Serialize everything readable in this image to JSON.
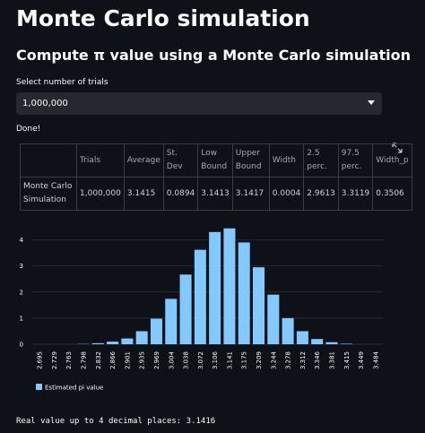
{
  "header": {
    "title": "Monte Carlo simulation",
    "subtitle": "Compute π value using a Monte Carlo simulation"
  },
  "select": {
    "label": "Select number of trials",
    "value": "1,000,000"
  },
  "status": "Done!",
  "table": {
    "columns": [
      "Trials",
      "Average",
      "St. Dev",
      "Low Bound",
      "Upper Bound",
      "Width",
      "2.5 perc.",
      "97.5 perc.",
      "Width_p"
    ],
    "rows": [
      [
        "Monte Carlo Simulation",
        "1,000,000",
        "3.1415",
        "0.0894",
        "3.1413",
        "3.1417",
        "0.0004",
        "2.9613",
        "3.3119",
        "0.3506"
      ]
    ]
  },
  "chart_data": {
    "type": "bar",
    "categories": [
      "2.695",
      "2.729",
      "2.763",
      "2.798",
      "2.832",
      "2.866",
      "2.901",
      "2.935",
      "2.969",
      "3.004",
      "3.038",
      "3.072",
      "3.106",
      "3.141",
      "3.175",
      "3.209",
      "3.244",
      "3.278",
      "3.312",
      "3.346",
      "3.381",
      "3.415",
      "3.449",
      "3.484"
    ],
    "series": [
      {
        "name": "Estimated pi value",
        "color": "#83c9ff",
        "values": [
          0,
          0,
          0,
          0.01,
          0.04,
          0.1,
          0.22,
          0.5,
          0.98,
          1.74,
          2.67,
          3.62,
          4.3,
          4.44,
          3.9,
          2.95,
          1.9,
          1.0,
          0.5,
          0.2,
          0.08,
          0.02,
          0,
          0
        ]
      }
    ],
    "ylim": [
      0,
      4.5
    ],
    "yticks": [
      0,
      1,
      2,
      3,
      4
    ],
    "grid": true,
    "legend": "bottom-left"
  },
  "footer": "Real value up to 4 decimal places: 3.1416"
}
